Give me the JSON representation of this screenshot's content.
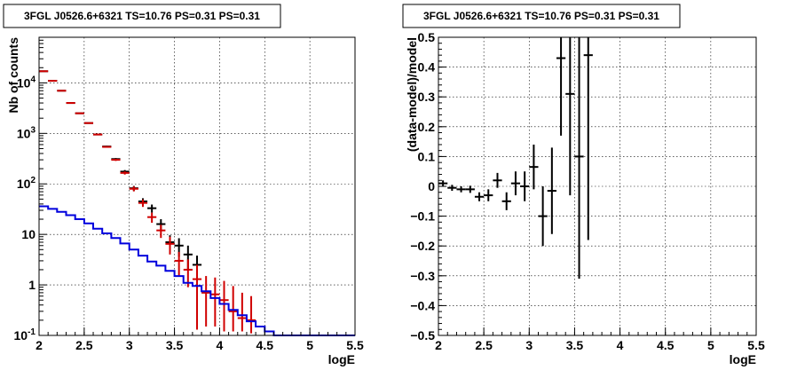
{
  "chart_data": [
    {
      "type": "line",
      "title": "3FGL J0526.6+6321 TS=10.76 PS=0.31 PS=0.31",
      "xlabel": "logE",
      "ylabel": "Nb of counts",
      "xlim": [
        2,
        5.5
      ],
      "ylim": [
        0.1,
        80000
      ],
      "yscale": "log",
      "grid": true,
      "x_ticks": [
        2,
        2.5,
        3,
        3.5,
        4,
        4.5,
        5,
        5.5
      ],
      "x_tick_labels": [
        "2",
        "2.5",
        "3",
        "3.5",
        "4",
        "4.5",
        "5",
        "5.5"
      ],
      "y_ticks": [
        0.1,
        1,
        10,
        100,
        1000,
        10000
      ],
      "y_tick_labels": [
        "10^-1",
        "1",
        "10",
        "10^2",
        "10^3",
        "10^4"
      ],
      "series": [
        {
          "color": "#000000",
          "style": "errorbar",
          "points": [
            {
              "x": 2.05,
              "y": 17000,
              "lo": 16800,
              "hi": 17200
            },
            {
              "x": 2.15,
              "y": 11000,
              "lo": 10850,
              "hi": 11150
            },
            {
              "x": 2.25,
              "y": 7000,
              "lo": 6900,
              "hi": 7100
            },
            {
              "x": 2.35,
              "y": 4000,
              "lo": 3930,
              "hi": 4070
            },
            {
              "x": 2.45,
              "y": 2500,
              "lo": 2450,
              "hi": 2550
            },
            {
              "x": 2.55,
              "y": 1600,
              "lo": 1560,
              "hi": 1640
            },
            {
              "x": 2.65,
              "y": 950,
              "lo": 920,
              "hi": 980
            },
            {
              "x": 2.75,
              "y": 550,
              "lo": 530,
              "hi": 570
            },
            {
              "x": 2.85,
              "y": 310,
              "lo": 295,
              "hi": 325
            },
            {
              "x": 2.95,
              "y": 175,
              "lo": 162,
              "hi": 188
            },
            {
              "x": 3.05,
              "y": 82,
              "lo": 73,
              "hi": 91
            },
            {
              "x": 3.15,
              "y": 45,
              "lo": 38,
              "hi": 52
            },
            {
              "x": 3.25,
              "y": 33,
              "lo": 27,
              "hi": 39
            },
            {
              "x": 3.35,
              "y": 16,
              "lo": 12,
              "hi": 20
            },
            {
              "x": 3.45,
              "y": 7,
              "lo": 4.4,
              "hi": 9.6
            },
            {
              "x": 3.55,
              "y": 6,
              "lo": 3.6,
              "hi": 8.4
            },
            {
              "x": 3.65,
              "y": 4,
              "lo": 2,
              "hi": 6
            },
            {
              "x": 3.75,
              "y": 2.5,
              "lo": 1.2,
              "hi": 3.8
            }
          ]
        },
        {
          "color": "#d00000",
          "style": "errorbar",
          "points": [
            {
              "x": 2.05,
              "y": 17000,
              "lo": 16800,
              "hi": 17200
            },
            {
              "x": 2.15,
              "y": 11000,
              "lo": 10850,
              "hi": 11150
            },
            {
              "x": 2.25,
              "y": 7000,
              "lo": 6900,
              "hi": 7100
            },
            {
              "x": 2.35,
              "y": 4000,
              "lo": 3930,
              "hi": 4070
            },
            {
              "x": 2.45,
              "y": 2500,
              "lo": 2450,
              "hi": 2550
            },
            {
              "x": 2.55,
              "y": 1600,
              "lo": 1560,
              "hi": 1640
            },
            {
              "x": 2.65,
              "y": 950,
              "lo": 920,
              "hi": 980
            },
            {
              "x": 2.75,
              "y": 540,
              "lo": 520,
              "hi": 560
            },
            {
              "x": 2.85,
              "y": 300,
              "lo": 285,
              "hi": 315
            },
            {
              "x": 2.95,
              "y": 165,
              "lo": 153,
              "hi": 177
            },
            {
              "x": 3.05,
              "y": 80,
              "lo": 71,
              "hi": 89
            },
            {
              "x": 3.15,
              "y": 42,
              "lo": 35,
              "hi": 49
            },
            {
              "x": 3.25,
              "y": 22,
              "lo": 17,
              "hi": 27
            },
            {
              "x": 3.35,
              "y": 12,
              "lo": 8.5,
              "hi": 15.5
            },
            {
              "x": 3.45,
              "y": 6.5,
              "lo": 4,
              "hi": 9
            },
            {
              "x": 3.55,
              "y": 3,
              "lo": 1.5,
              "hi": 4.5
            },
            {
              "x": 3.65,
              "y": 2,
              "lo": 0.9,
              "hi": 3.2
            },
            {
              "x": 3.75,
              "y": 1.3,
              "lo": 0.13,
              "hi": 2.5
            },
            {
              "x": 3.85,
              "y": 0.7,
              "lo": 0.15,
              "hi": 1.5
            },
            {
              "x": 3.95,
              "y": 0.65,
              "lo": 0.15,
              "hi": 1.4
            },
            {
              "x": 4.05,
              "y": 0.5,
              "lo": 0.12,
              "hi": 1.2
            },
            {
              "x": 4.15,
              "y": 0.3,
              "lo": 0.12,
              "hi": 0.95
            },
            {
              "x": 4.25,
              "y": 0.22,
              "lo": 0.12,
              "hi": 0.7
            },
            {
              "x": 4.35,
              "y": 0.2,
              "lo": 0.11,
              "hi": 0.6
            }
          ]
        },
        {
          "color": "#0000dd",
          "style": "step",
          "edges": [
            2.0,
            2.1,
            2.2,
            2.3,
            2.4,
            2.5,
            2.6,
            2.7,
            2.8,
            2.9,
            3.0,
            3.1,
            3.2,
            3.3,
            3.4,
            3.5,
            3.6,
            3.7,
            3.8,
            3.9,
            4.0,
            4.1,
            4.2,
            4.3,
            4.4,
            4.5,
            4.6,
            5.5
          ],
          "values": [
            36,
            32,
            28,
            24,
            20,
            16.5,
            13,
            10.5,
            8.5,
            6.6,
            5,
            3.8,
            2.9,
            2.4,
            1.9,
            1.5,
            1.1,
            0.95,
            0.75,
            0.55,
            0.42,
            0.32,
            0.25,
            0.19,
            0.15,
            0.12,
            0.1
          ]
        }
      ]
    },
    {
      "type": "scatter",
      "title": "3FGL J0526.6+6321 TS=10.76 PS=0.31 PS=0.31",
      "xlabel": "logE",
      "ylabel": "(data-model)/model",
      "xlim": [
        2,
        5.5
      ],
      "ylim": [
        -0.5,
        0.5
      ],
      "grid": true,
      "x_ticks": [
        2,
        2.5,
        3,
        3.5,
        4,
        4.5,
        5,
        5.5
      ],
      "x_tick_labels": [
        "2",
        "2.5",
        "3",
        "3.5",
        "4",
        "4.5",
        "5",
        "5.5"
      ],
      "y_ticks": [
        -0.5,
        -0.4,
        -0.3,
        -0.2,
        -0.1,
        0,
        0.1,
        0.2,
        0.3,
        0.4,
        0.5
      ],
      "y_tick_labels": [
        "−0.5",
        "−0.4",
        "−0.3",
        "−0.2",
        "−0.1",
        "0",
        "0.1",
        "0.2",
        "0.3",
        "0.4",
        "0.5"
      ],
      "series": [
        {
          "color": "#000000",
          "style": "errorbar",
          "points": [
            {
              "x": 2.05,
              "y": 0.01,
              "lo": 0.0,
              "hi": 0.02
            },
            {
              "x": 2.15,
              "y": -0.005,
              "lo": -0.015,
              "hi": 0.005
            },
            {
              "x": 2.25,
              "y": -0.01,
              "lo": -0.02,
              "hi": 0.0
            },
            {
              "x": 2.35,
              "y": -0.01,
              "lo": -0.022,
              "hi": 0.002
            },
            {
              "x": 2.45,
              "y": -0.035,
              "lo": -0.05,
              "hi": -0.02
            },
            {
              "x": 2.55,
              "y": -0.03,
              "lo": -0.05,
              "hi": -0.01
            },
            {
              "x": 2.65,
              "y": 0.02,
              "lo": -0.005,
              "hi": 0.045
            },
            {
              "x": 2.75,
              "y": -0.05,
              "lo": -0.08,
              "hi": -0.02
            },
            {
              "x": 2.85,
              "y": 0.01,
              "lo": -0.03,
              "hi": 0.05
            },
            {
              "x": 2.95,
              "y": 0.0,
              "lo": -0.05,
              "hi": 0.05
            },
            {
              "x": 3.05,
              "y": 0.065,
              "lo": -0.01,
              "hi": 0.14
            },
            {
              "x": 3.15,
              "y": -0.1,
              "lo": -0.2,
              "hi": 0.0
            },
            {
              "x": 3.25,
              "y": -0.015,
              "lo": -0.16,
              "hi": 0.13
            },
            {
              "x": 3.35,
              "y": 0.43,
              "lo": 0.17,
              "hi": 0.5
            },
            {
              "x": 3.45,
              "y": 0.31,
              "lo": -0.03,
              "hi": 0.5
            },
            {
              "x": 3.55,
              "y": 0.1,
              "lo": -0.31,
              "hi": 0.5
            },
            {
              "x": 3.65,
              "y": 0.44,
              "lo": -0.18,
              "hi": 0.5
            }
          ]
        }
      ]
    }
  ]
}
